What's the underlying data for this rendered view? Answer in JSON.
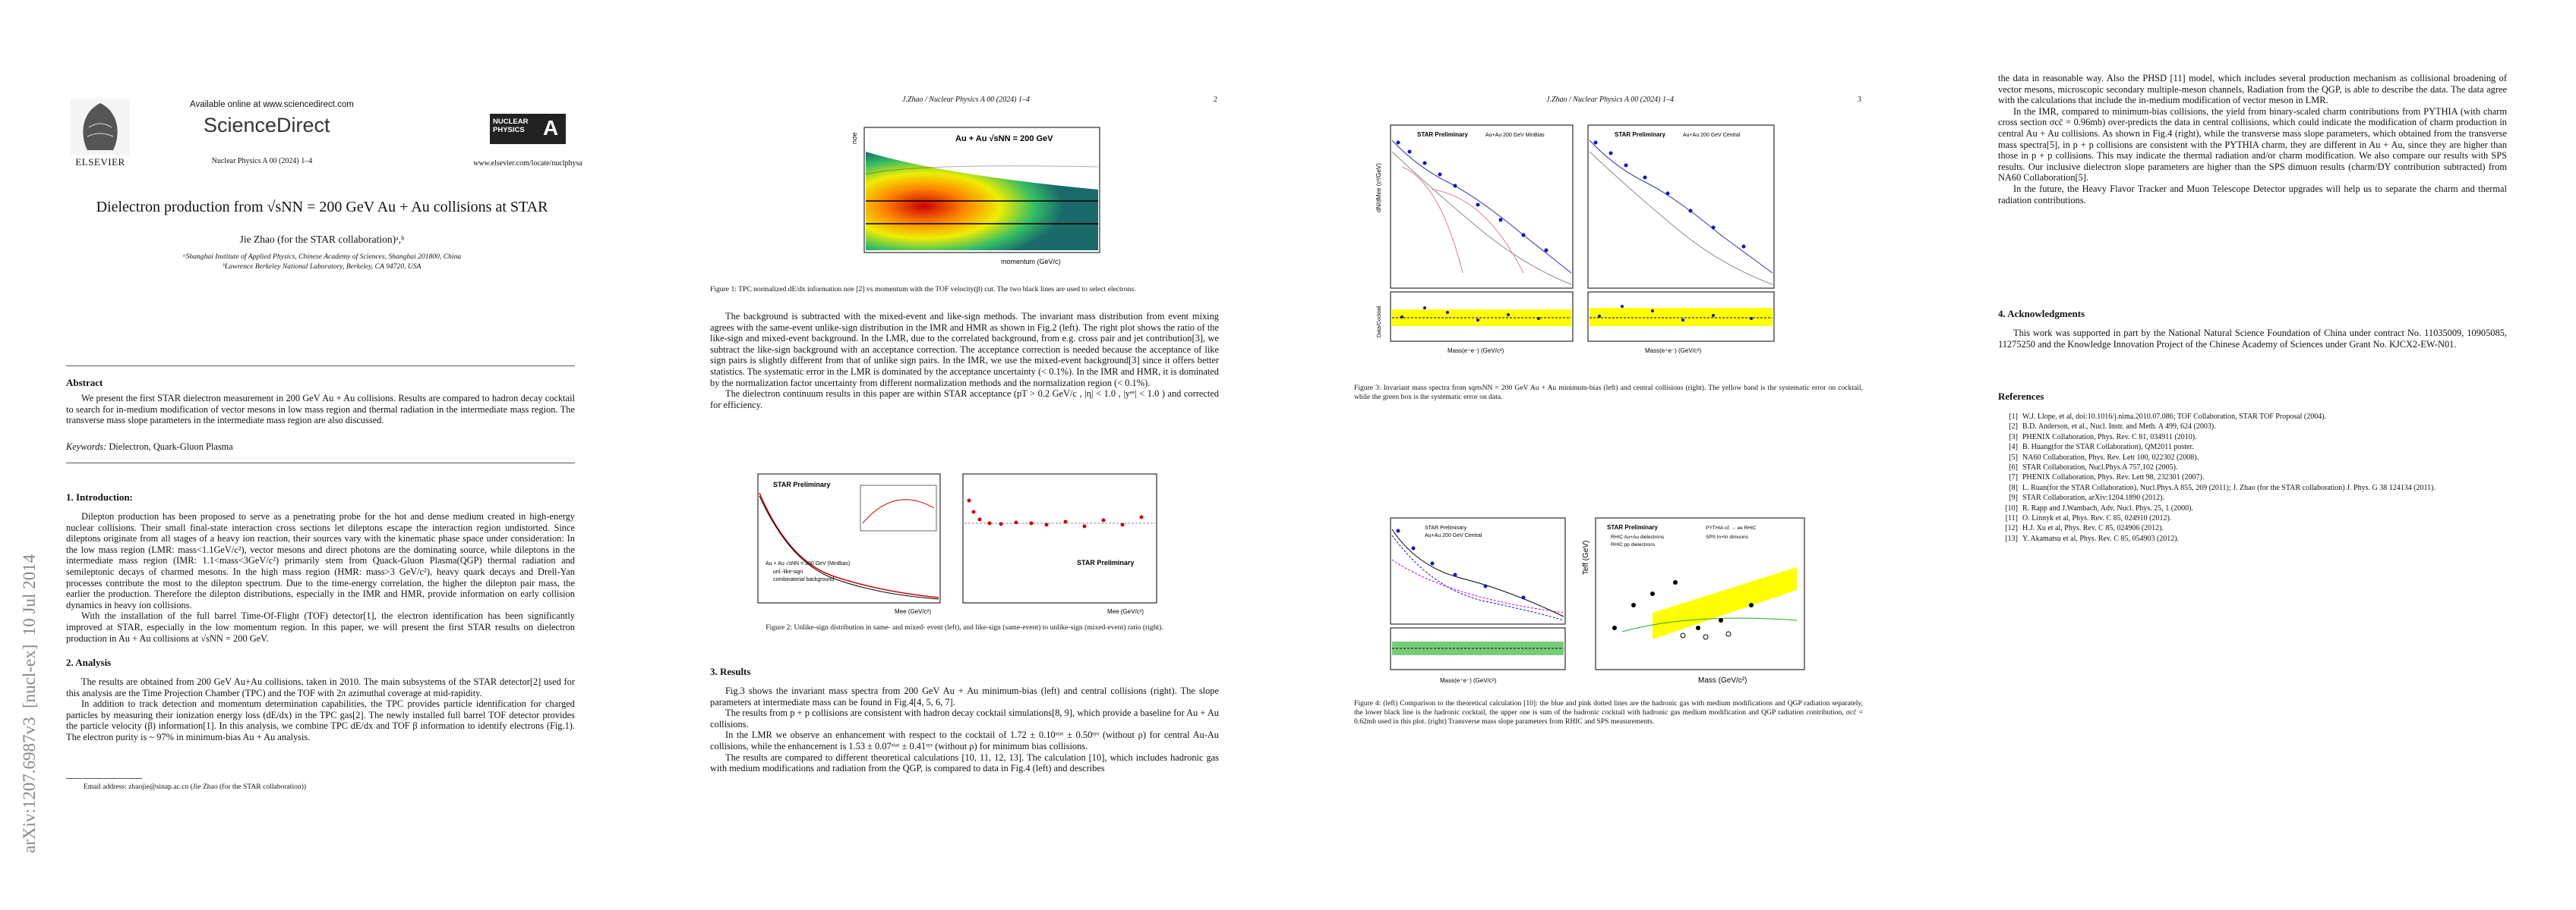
{
  "sidebar": "arXiv:1207.6987v3  [nucl-ex]  10 Jul 2014",
  "running_header": "J.Zhao / Nuclear Physics A 00 (2024) 1–4",
  "page1": {
    "publisher": "ELSEVIER",
    "available": "Available online at www.sciencedirect.com",
    "brand": "ScienceDirect",
    "journal": "Nuclear Physics A 00 (2024) 1–4",
    "logo_top": "NUCLEAR PHYSICS",
    "logo_letter": "A",
    "url": "www.elsevier.com/locate/nuclphysa",
    "title": "Dielectron production from √sNN = 200 GeV Au + Au collisions at STAR",
    "author": "Jie Zhao (for the STAR collaboration)ᵃ,ᵇ",
    "affiliations": [
      "ᵃShanghai Institute of Applied Physics, Chinese Academy of Sciences, Shanghai 201800, China",
      "ᵇLawrence Berkeley National Laboratory, Berkeley, CA 94720, USA"
    ],
    "abstract_heading": "Abstract",
    "abstract": "We present the first STAR dielectron measurement in 200 GeV Au + Au collisions. Results are compared to hadron decay cocktail to search for in-medium modification of vector mesons in low mass region and thermal radiation in the intermediate mass region. The transverse mass slope parameters in the intermediate mass region are also discussed.",
    "keywords_label": "Keywords:",
    "keywords": "Dielectron, Quark-Gluon Plasma",
    "intro_heading": "1. Introduction:",
    "intro": [
      "Dilepton production has been proposed to serve as a penetrating probe for the hot and dense medium created in high-energy nuclear collisions. Their small final-state interaction cross sections let dileptons escape the interaction region undistorted. Since dileptons originate from all stages of a heavy ion reaction, their sources vary with the kinematic phase space under consideration: In the low mass region (LMR: mass<1.1GeV/c²), vector mesons and direct photons are the dominating source, while dileptons in the intermediate mass region (IMR: 1.1<mass<3GeV/c²) primarily stem from Quack-Gluon Plasma(QGP) thermal radiation and semileptonic decays of charmed mesons. In the high mass region (HMR: mass>3 GeV/c²), heavy quark decays and Drell-Yan processes contribute the most to the dilepton spectrum. Due to the time-energy correlation, the higher the dilepton pair mass, the earlier the production. Therefore the dilepton distributions, especially in the IMR and HMR, provide information on early collision dynamics in heavy ion collisions.",
      "With the installation of the full barrel Time-Of-Flight (TOF) detector[1], the electron identification has been significantly improved at STAR, especially in the low momentum region. In this paper, we will present the first STAR results on dielectron production in Au + Au collisions at √sNN = 200 GeV."
    ],
    "analysis_heading": "2. Analysis",
    "analysis": [
      "The results are obtained from 200 GeV Au+Au collisions, taken in 2010. The main subsystems of the STAR detector[2] used for this analysis are the Time Projection Chamber (TPC) and the TOF with 2π azimuthal coverage at mid-rapidity.",
      "In addition to track detection and momentum determination capabilities, the TPC provides particle identification for charged particles by measuring their ionization energy loss (dE/dx) in the TPC gas[2]. The newly installed full barrel TOF detector provides the particle velocity (β) information[1]. In this analysis, we combine TPC dE/dx and TOF β information to identify electrons (Fig.1). The electron purity is ~ 97% in minimum-bias Au + Au analysis."
    ],
    "footnote": "Email address: zhaojie@sinap.ac.cn (Jie Zhao (for the STAR collaboration))"
  },
  "page2": {
    "number": "2",
    "fig1_labels": [
      "Au + Au √sNN = 200 GeV",
      "momentum (GeV/c)",
      "nσe"
    ],
    "fig1_caption": "Figure 1: TPC normalized dE/dx information nσe [2] vs momentum with the TOF velocity(β) cut. The two black lines are used to select electrons.",
    "paragraphs": [
      "The background is subtracted with the mixed-event and like-sign methods. The invariant mass distribution from event mixing agrees with the same-event unlike-sign distribution in the IMR and HMR as shown in Fig.2 (left). The right plot shows the ratio of the like-sign and mixed-event background. In the LMR, due to the correlated background, from e.g. cross pair and jet contribution[3], we subtract the like-sign background with an acceptance correction. The acceptance correction is needed because the acceptance of like sign pairs is slightly different from that of unlike sign pairs. In the IMR, we use the mixed-event background[3] since it offers better statistics. The systematic error in the LMR is dominated by the acceptance uncertainty (< 0.1%). In the IMR and HMR, it is dominated by the normalization factor uncertainty from different normalization methods and the normalization region (< 0.1%).",
      "The dielectron continuum results in this paper are within STAR acceptance (pT > 0.2 GeV/c , |η| < 1.0 , |yᵉᵉ| < 1.0 ) and corrected for efficiency."
    ],
    "fig2_labels": [
      "STAR Preliminary",
      "Au + Au √sNN = 200 GeV (MinBias)",
      "unl.-like-sign",
      "combinatorial background",
      "STAR Preliminary",
      "Mee (GeV/c²)",
      "Mee (GeV/c²)"
    ],
    "fig2_caption": "Figure 2: Unlike-sign distribution in same- and mixed- event (left), and like-sign (same-event) to unlike-sign (mixed-event) ratio (right).",
    "results_heading": "3. Results",
    "results": [
      "Fig.3 shows the invariant mass spectra from 200 GeV Au + Au minimum-bias (left) and central collisions (right). The slope parameters at intermediate mass can be found in Fig.4[4, 5, 6, 7].",
      "The results from p + p collisions are consistent with hadron decay cocktail simulations[8, 9], which provide a baseline for Au + Au collisions.",
      "In the LMR we observe an enhancement with respect to the cocktail of 1.72 ± 0.10ˢᵗᵃᵗ ± 0.50ˢʸˢ (without ρ) for central Au-Au collisions, while the enhancement is 1.53 ± 0.07ˢᵗᵃᵗ ± 0.41ˢʸˢ (without ρ) for minimum bias collisions.",
      "The results are compared to different theoretical calculations [10, 11, 12, 13]. The calculation [10], which includes hadronic gas with medium modifications and radiation from the QGP, is compared to data in Fig.4 (left) and describes"
    ]
  },
  "page3": {
    "number": "3",
    "fig3_labels": [
      "STAR Preliminary",
      "Au+Au 200 GeV MinBias",
      "STAR Preliminary",
      "Au+Au 200 GeV Central",
      "Mass(e⁺e⁻) (GeV/c²)",
      "Mass(e⁺e⁻) (GeV/c²)",
      "dN/dMee (c²/GeV)",
      "Data/Cocktail"
    ],
    "fig3_caption": "Figure 3: Invariant mass spectra from sqrtsNN = 200 GeV Au + Au minimum-bias (left) and central collisions (right). The yellow band is the systematic error on cocktail, while the green box is the systematic error on data.",
    "fig4_labels": [
      "STAR Preliminary",
      "Au+Au 200 GeV Central",
      "Mass(e⁺e⁻) (GeV/c²)",
      "STAR Preliminary",
      "RHIC Au+Au dielectrons",
      "RHIC pp dielectrons",
      "PYTHIA cc̄ → ee RHIC",
      "SPS In+In dimuons",
      "Mass (GeV/c²)",
      "Teff (GeV)"
    ],
    "fig4_caption": "Figure 4: (left) Comparison to the theoretical calculation [10]: the blue and pink dotted lines are the hadronic gas with medium modifications and QGP radiation separately, the lower black line is the hadronic cocktail, the upper one is sum of the hadronic cocktail with hadronic gas medium modification and QGP radiation contribution, σcc̄ = 0.62mb used in this plot. (right) Transverse mass slope parameters from RHIC and SPS measurements."
  },
  "page4": {
    "paragraphs": [
      "the data in reasonable way. Also the PHSD [11] model, which includes several production mechanism as collisional broadening of vector mesons, microscopic secondary multiple-meson channels, Radiation from the QGP, is able to describe the data. The data agree with the calculations that include the in-medium modification of vector meson in LMR.",
      "In the IMR, compared to minimum-bias collisions, the yield from binary-scaled charm contributions from PYTHIA (with charm cross section σcc̄ = 0.96mb) over-predicts the data in central collisions, which could indicate the modification of charm production in central Au + Au collisions. As shown in Fig.4 (right), while the transverse mass slope parameters, which obtained from the transverse mass spectra[5], in p + p collisions are consistent with the PYTHIA charm, they are different in Au + Au, since they are higher than those in p + p collisions. This may indicate the thermal radiation and/or charm modification. We also compare our results with SPS results. Our inclusive dielectron slope parameters are higher than the SPS dimuon results (charm/DY contribution subtracted) from NA60 Collaboration[5].",
      "In the future, the Heavy Flavor Tracker and Muon Telescope Detector upgrades will help us to separate the charm and thermal radiation contributions."
    ],
    "ack_heading": "4. Acknowledgments",
    "ack": "This work was supported in part by the National Natural Science Foundation of China under contract No. 11035009, 10905085, 11275250 and the Knowledge Innovation Project of the Chinese Academy of Sciences under Grant No. KJCX2-EW-N01.",
    "refs_heading": "References",
    "references": [
      {
        "n": "[1]",
        "text": "W.J. Llope, et al, doi:10.1016/j.nima.2010.07.086; TOF Collaboration, STAR TOF Proposal (2004)."
      },
      {
        "n": "[2]",
        "text": "B.D. Anderson, et al., Nucl. Instr. and Meth. A 499, 624 (2003)."
      },
      {
        "n": "[3]",
        "text": "PHENIX Collaboration, Phys. Rev. C 81, 034911 (2010)."
      },
      {
        "n": "[4]",
        "text": "B. Huang(for the STAR Collaboration), QM2011 poster."
      },
      {
        "n": "[5]",
        "text": "NA60 Collaboration, Phys. Rev. Lett 100, 022302 (2008)."
      },
      {
        "n": "[6]",
        "text": "STAR Collaboration, Nucl.Phys.A 757,102 (2005)."
      },
      {
        "n": "[7]",
        "text": "PHENIX Collaboration, Phys. Rev. Lett 98, 232301 (2007)."
      },
      {
        "n": "[8]",
        "text": "L. Ruan(for the STAR Collaboration), Nucl.Phys.A 855, 269 (2011); J. Zhao (for the STAR collaboration) J. Phys. G 38 124134 (2011)."
      },
      {
        "n": "[9]",
        "text": "STAR Collaboration, arXiv:1204.1890 (2012)."
      },
      {
        "n": "[10]",
        "text": "R. Rapp and J.Wambach, Adv. Nucl. Phys. 25, 1 (2000)."
      },
      {
        "n": "[11]",
        "text": "O. Linnyk et al, Phys. Rev. C 85, 024910 (2012)."
      },
      {
        "n": "[12]",
        "text": "H.J. Xu et al, Phys. Rev. C 85, 024906 (2012)."
      },
      {
        "n": "[13]",
        "text": "Y. Akamatsu et al, Phys. Rev. C 85, 054903 (2012)."
      }
    ]
  }
}
